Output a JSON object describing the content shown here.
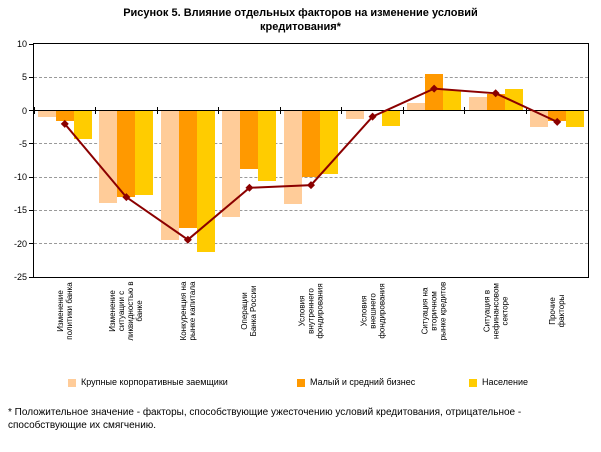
{
  "title": "Рисунок 5. Влияние отдельных факторов на изменение условий кредитования*",
  "footnote": "* Положительное значение - факторы, способствующие ужесточению условий кредитования, отрицательное - способствующие их смягчению.",
  "colors": {
    "grid": "#999999",
    "axis": "#000000",
    "line_series": "#8B0000"
  },
  "chart_data": {
    "type": "bar",
    "subtype": "grouped bars with overlaid line series (line has no legend entry)",
    "categories": [
      "Изменение политики банка",
      "Изменение ситуации с ликвидностью в банке",
      "Конкуренция на рынке капитала",
      "Операции Банка России",
      "Условия внутреннего фондирования",
      "Условия внешнего фондирования",
      "Ситуация на вторичном рынке кредитов",
      "Ситуация в нефинансовом секторе",
      "Прочие факторы"
    ],
    "series": [
      {
        "name": "Крупные корпоративные заемщики",
        "color": "#FFCC99",
        "values": [
          -1.0,
          -13.9,
          -19.4,
          -16.0,
          -14.0,
          -1.2,
          1.2,
          2.0,
          -2.4
        ]
      },
      {
        "name": "Малый и средний бизнес",
        "color": "#FF9900",
        "values": [
          -1.5,
          -13.0,
          -17.6,
          -8.8,
          -10.0,
          0,
          5.5,
          2.5,
          -1.6
        ]
      },
      {
        "name": "Население",
        "color": "#FFCC00",
        "values": [
          -4.3,
          -12.7,
          -21.2,
          -10.6,
          -9.5,
          -2.3,
          3.1,
          3.2,
          -2.5
        ]
      }
    ],
    "line_series": {
      "color": "#8B0000",
      "values": [
        -2.0,
        -13.0,
        -19.4,
        -11.6,
        -11.2,
        -0.9,
        3.3,
        2.6,
        -1.7
      ]
    },
    "ylim": [
      -25,
      10
    ],
    "yticks": [
      10,
      5,
      0,
      -5,
      -10,
      -15,
      -20,
      -25
    ],
    "grid": "horizontal dashed",
    "legend_position": "bottom"
  }
}
